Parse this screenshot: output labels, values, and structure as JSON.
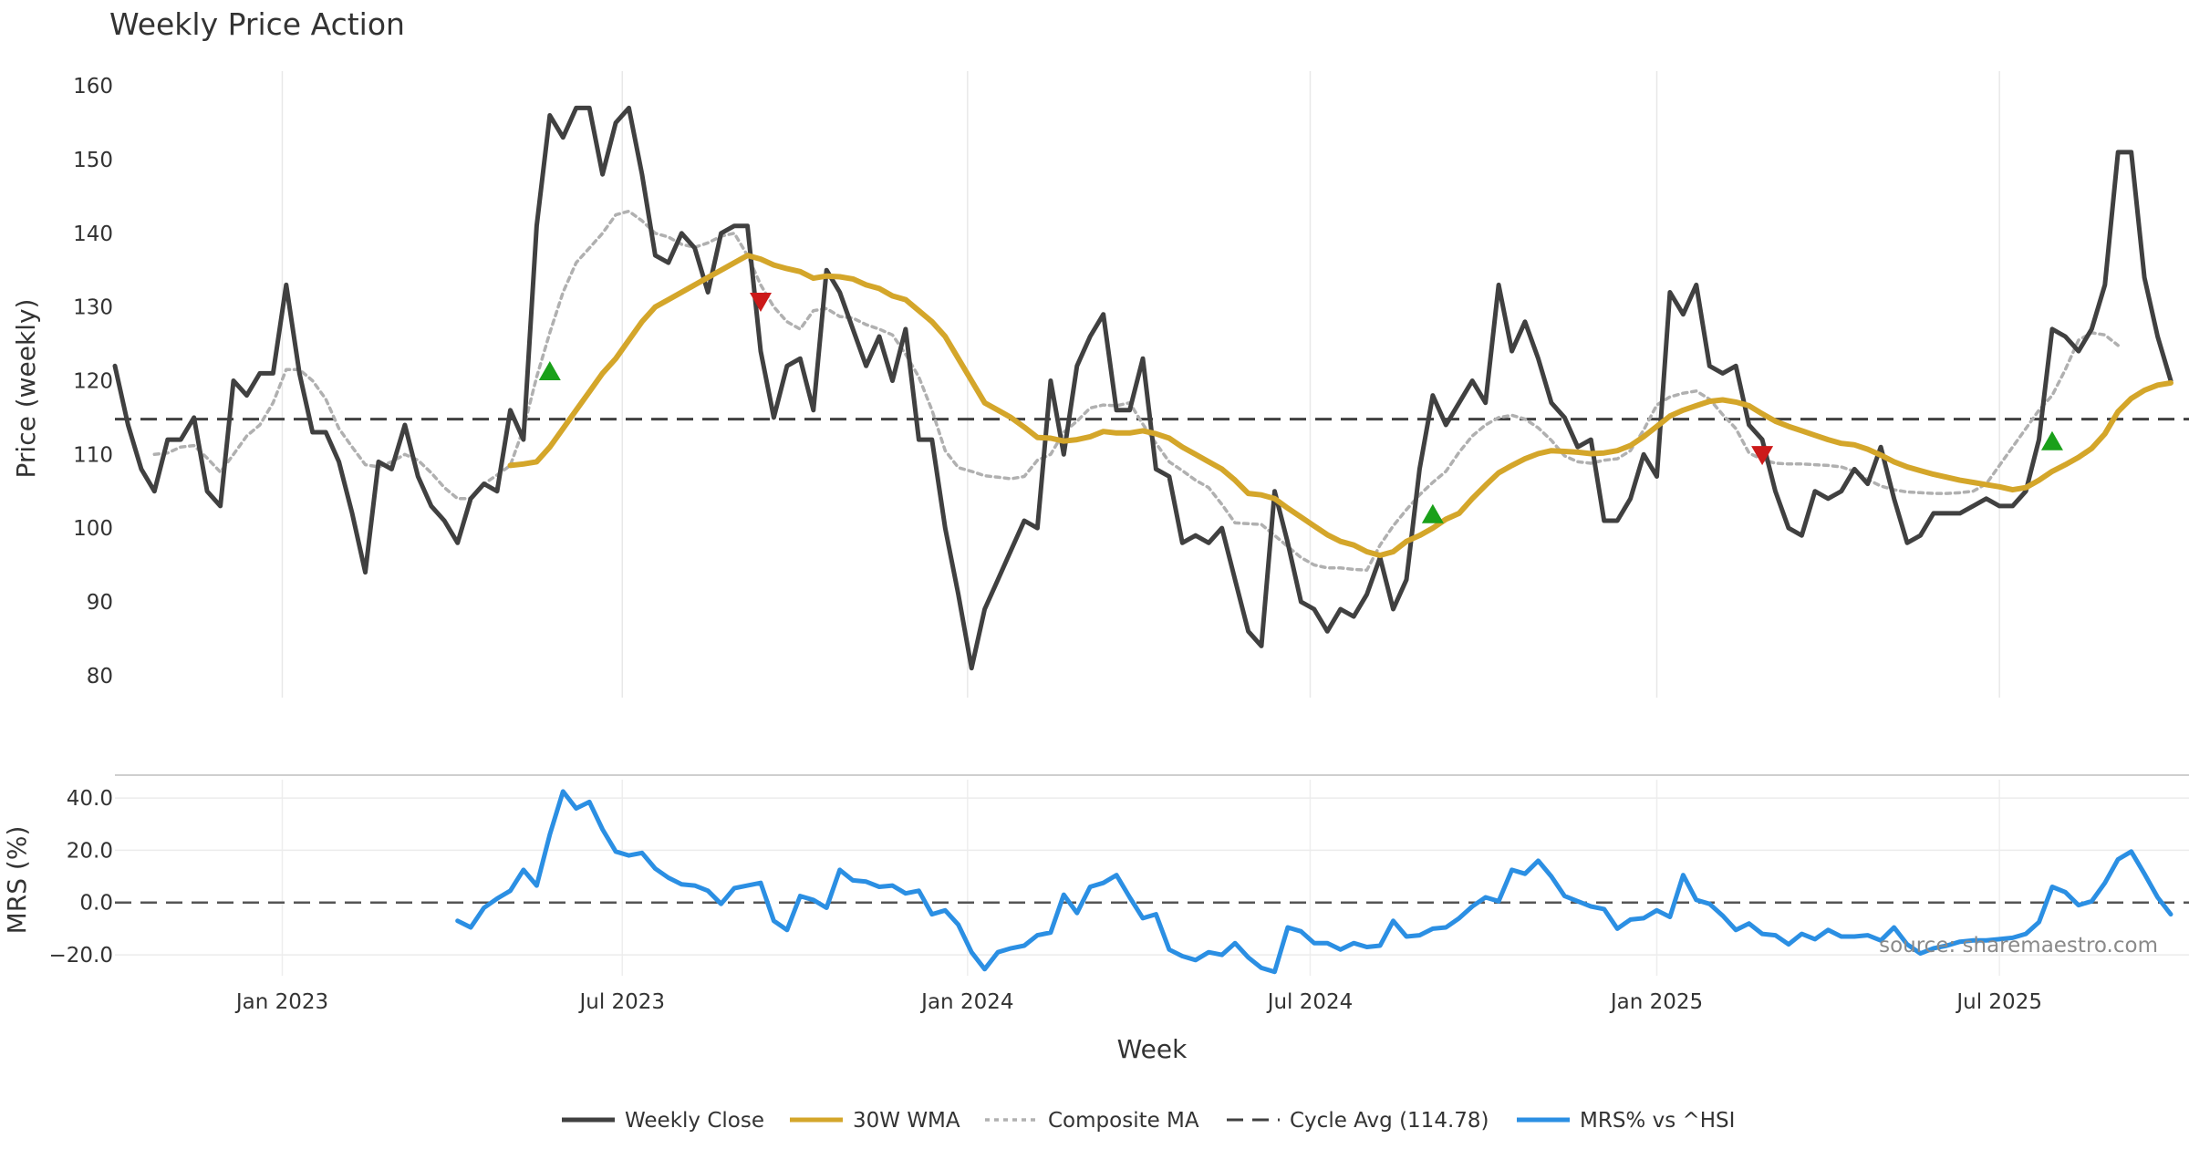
{
  "chart_data": {
    "type": "line",
    "title": "Weekly Price Action",
    "xlabel": "Week",
    "x_ticks": [
      "Jan 2023",
      "Jul 2023",
      "Jan 2024",
      "Jul 2024",
      "Jan 2025",
      "Jul 2025"
    ],
    "source_note": "source: sharemaestro.com",
    "price_panel": {
      "ylabel": "Price (weekly)",
      "ylim": [
        77,
        162
      ],
      "y_ticks": [
        80,
        90,
        100,
        110,
        120,
        130,
        140,
        150,
        160
      ],
      "cycle_avg": 114.78,
      "series": [
        {
          "name": "Weekly Close",
          "color": "#404040",
          "values": [
            122,
            114,
            108,
            105,
            112,
            112,
            115,
            105,
            103,
            120,
            118,
            121,
            121,
            133,
            121,
            113,
            113,
            109,
            102,
            94,
            109,
            108,
            114,
            107,
            103,
            101,
            98,
            104,
            106,
            105,
            116,
            112,
            141,
            156,
            153,
            157,
            157,
            148,
            155,
            157,
            148,
            137,
            136,
            140,
            138,
            132,
            140,
            141,
            141,
            124,
            115,
            122,
            123,
            116,
            135,
            132,
            127,
            122,
            126,
            120,
            127,
            112,
            112,
            100,
            91,
            81,
            89,
            93,
            97,
            101,
            100,
            120,
            110,
            122,
            126,
            129,
            116,
            116,
            123,
            108,
            107,
            98,
            99,
            98,
            100,
            93,
            86,
            84,
            105,
            98,
            90,
            89,
            86,
            89,
            88,
            91,
            96,
            89,
            93,
            108,
            118,
            114,
            117,
            120,
            117,
            133,
            124,
            128,
            123,
            117,
            115,
            111,
            112,
            101,
            101,
            104,
            110,
            107,
            132,
            129,
            133,
            122,
            121,
            122,
            114,
            112,
            105,
            100,
            99,
            105,
            104,
            105,
            108,
            106,
            111,
            104,
            98,
            99,
            102,
            102,
            102,
            103,
            104,
            103,
            103,
            105,
            112,
            127,
            126,
            124,
            127,
            133,
            151,
            151,
            134,
            126,
            120
          ]
        },
        {
          "name": "30W WMA",
          "color": "#d4a62a",
          "start": 30,
          "values": [
            108.5,
            108.7,
            109,
            111,
            113.5,
            116,
            118.5,
            121,
            123,
            125.5,
            128,
            130,
            131,
            132,
            133,
            134,
            135,
            136,
            137,
            136.5,
            135.7,
            135.2,
            134.8,
            133.9,
            134.2,
            134.1,
            133.8,
            133,
            132.5,
            131.5,
            131,
            129.5,
            128,
            126,
            123,
            120,
            117,
            116,
            115,
            113.7,
            112.3,
            112.2,
            111.8,
            112,
            112.4,
            113.1,
            112.9,
            112.9,
            113.2,
            112.8,
            112.2,
            111,
            110,
            109,
            108,
            106.5,
            104.7,
            104.5,
            104,
            102.7,
            101.5,
            100.3,
            99.1,
            98.2,
            97.7,
            96.8,
            96.3,
            96.8,
            98.2,
            99,
            100,
            101.2,
            102,
            104,
            105.8,
            107.5,
            108.5,
            109.4,
            110.1,
            110.5,
            110.4,
            110.3,
            110.1,
            110.2,
            110.5,
            111.2,
            112.4,
            113.8,
            115.2,
            116,
            116.6,
            117.2,
            117.4,
            117.1,
            116.6,
            115.5,
            114.5,
            113.8,
            113.2,
            112.6,
            112,
            111.5,
            111.3,
            110.7,
            109.9,
            109,
            108.3,
            107.8,
            107.3,
            106.9,
            106.5,
            106.2,
            105.9,
            105.6,
            105.2,
            105.5,
            106.5,
            107.7,
            108.6,
            109.6,
            110.8,
            112.8,
            115.8,
            117.6,
            118.7,
            119.4,
            119.7
          ]
        },
        {
          "name": "Composite MA",
          "color": "#b0b0b0",
          "start": 3,
          "values": [
            110,
            110.2,
            111,
            111.2,
            109.5,
            107.6,
            110,
            112.5,
            114,
            117,
            121.5,
            121.5,
            120,
            117.5,
            113.5,
            111,
            108.6,
            108.3,
            109,
            110,
            109.2,
            107.5,
            105.5,
            104,
            104,
            106,
            107.2,
            108.5,
            113.5,
            120.5,
            126.5,
            132,
            136,
            138,
            140,
            142.5,
            143,
            141.7,
            140,
            139.5,
            138.5,
            138.1,
            138.7,
            139.6,
            140,
            137,
            133,
            130,
            128,
            127,
            129.5,
            129.8,
            128.7,
            128.5,
            127.6,
            127,
            126.2,
            123.6,
            120.5,
            116,
            110.5,
            108.2,
            107.7,
            107.1,
            106.9,
            106.7,
            107,
            109.2,
            110,
            113,
            114.5,
            116.3,
            116.7,
            116.6,
            117,
            114.1,
            111.5,
            109,
            107.8,
            106.5,
            105.5,
            103.2,
            100.7,
            100.6,
            100.5,
            99,
            97.5,
            96,
            95,
            94.6,
            94.6,
            94.4,
            94.3,
            97.7,
            100.3,
            102.5,
            104.5,
            106.2,
            107.7,
            110.3,
            112.5,
            114,
            115,
            115.3,
            114.8,
            113.6,
            111.9,
            109.8,
            109,
            108.8,
            109.2,
            109.4,
            110.5,
            113.3,
            116.7,
            117.8,
            118.3,
            118.6,
            117.5,
            115.4,
            113.5,
            110.2,
            109.3,
            108.8,
            108.7,
            108.7,
            108.6,
            108.5,
            108.3,
            107.7,
            106.6,
            105.7,
            105.2,
            104.9,
            104.8,
            104.7,
            104.7,
            104.8,
            105,
            106,
            108.5,
            111,
            113.5,
            116,
            118,
            121.5,
            125.5,
            126.5,
            126.2,
            124.8
          ]
        }
      ],
      "buy_signals": [
        {
          "week": 33,
          "price": 121.3
        },
        {
          "week": 100,
          "price": 101.9
        },
        {
          "week": 147,
          "price": 111.8
        }
      ],
      "sell_signals": [
        {
          "week": 49,
          "price": 130.7
        },
        {
          "week": 125,
          "price": 109.9
        }
      ]
    },
    "mrs_panel": {
      "ylabel": "MRS (%)",
      "ylim": [
        -28,
        47
      ],
      "y_ticks": [
        "40.0",
        "20.0",
        "0.0",
        "−20.0"
      ],
      "y_tick_values": [
        40,
        20,
        0,
        -20
      ],
      "series": [
        {
          "name": "MRS% vs ^HSI",
          "color": "#2b8fe3",
          "start": 26,
          "values": [
            -7,
            -9.5,
            -2,
            1.5,
            4.5,
            12.5,
            6.5,
            26,
            42.5,
            36,
            38.5,
            28,
            19.5,
            18,
            19,
            13,
            9.5,
            7,
            6.5,
            4.5,
            -0.5,
            5.5,
            6.5,
            7.5,
            -7,
            -10.5,
            2.5,
            1,
            -2,
            12.5,
            8.5,
            8,
            6,
            6.5,
            3.5,
            4.5,
            -4.5,
            -3,
            -8.5,
            -19,
            -25.5,
            -19,
            -17.5,
            -16.5,
            -12.5,
            -11.5,
            3,
            -4,
            6,
            7.5,
            10.5,
            2,
            -6,
            -4.5,
            -18,
            -20.5,
            -22,
            -19,
            -20,
            -15.5,
            -21,
            -25,
            -26.5,
            -9.5,
            -11,
            -15.5,
            -15.5,
            -18,
            -15.5,
            -17,
            -16.5,
            -7,
            -13,
            -12.5,
            -10,
            -9.5,
            -6,
            -1.5,
            2,
            0.5,
            12.5,
            11,
            16,
            10,
            2.5,
            0.5,
            -1.5,
            -2.5,
            -10,
            -6.5,
            -6,
            -3,
            -5.5,
            10.5,
            1,
            -0.5,
            -5,
            -10.5,
            -8,
            -12,
            -12.5,
            -16,
            -12,
            -14,
            -10.5,
            -13,
            -13,
            -12.5,
            -14.5,
            -9.5,
            -16,
            -19.5,
            -17.5,
            -16.5,
            -15,
            -14.5,
            -14.5,
            -14,
            -13.5,
            -12,
            -7.5,
            6,
            4,
            -1,
            0.5,
            7.5,
            16.5,
            19.5,
            11,
            2,
            -4.5
          ]
        }
      ],
      "baseline": 0
    },
    "legend": [
      {
        "label": "Weekly Close",
        "color": "#404040",
        "style": "solid"
      },
      {
        "label": "30W WMA",
        "color": "#d4a62a",
        "style": "solid"
      },
      {
        "label": "Composite MA",
        "color": "#b0b0b0",
        "style": "dotted"
      },
      {
        "label": "Cycle Avg (114.78)",
        "color": "#404040",
        "style": "dashed"
      },
      {
        "label": "MRS% vs ^HSI",
        "color": "#2b8fe3",
        "style": "solid"
      }
    ]
  }
}
